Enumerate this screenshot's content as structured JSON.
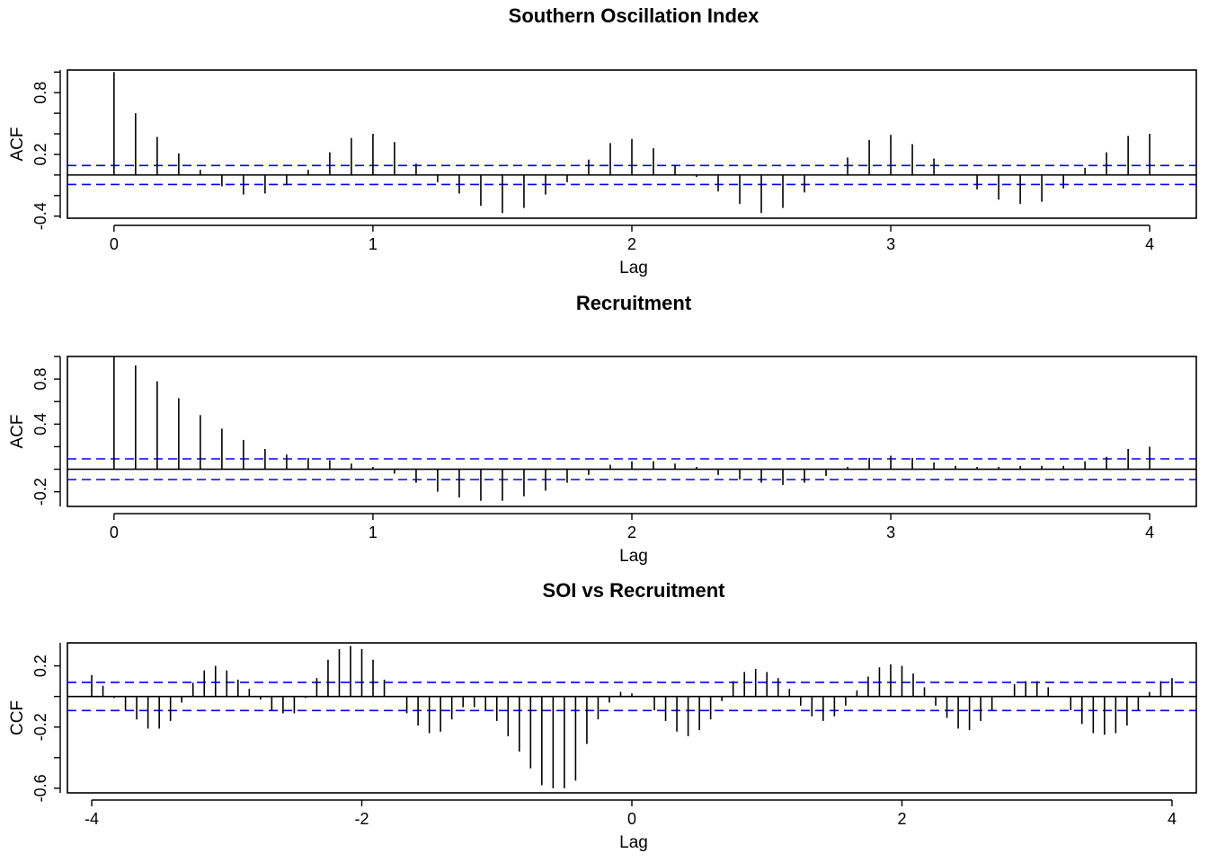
{
  "chart_data": [
    {
      "type": "bar",
      "title": "Southern Oscillation Index",
      "xlabel": "Lag",
      "ylabel": "ACF",
      "xlim": [
        -0.18,
        4.18
      ],
      "ylim": [
        -0.42,
        1.02
      ],
      "xticks": [
        0,
        1,
        2,
        3,
        4
      ],
      "yticks": [
        -0.4,
        0.2,
        0.8
      ],
      "ytick_labels": [
        "-0.4",
        "0.2",
        "0.8"
      ],
      "ci": 0.092,
      "x": [
        0,
        0.0833,
        0.1667,
        0.25,
        0.3333,
        0.4167,
        0.5,
        0.5833,
        0.6667,
        0.75,
        0.8333,
        0.9167,
        1,
        1.0833,
        1.1667,
        1.25,
        1.3333,
        1.4167,
        1.5,
        1.5833,
        1.6667,
        1.75,
        1.8333,
        1.9167,
        2,
        2.0833,
        2.1667,
        2.25,
        2.3333,
        2.4167,
        2.5,
        2.5833,
        2.6667,
        2.75,
        2.8333,
        2.9167,
        3,
        3.0833,
        3.1667,
        3.25,
        3.3333,
        3.4167,
        3.5,
        3.5833,
        3.6667,
        3.75,
        3.8333,
        3.9167,
        4
      ],
      "values": [
        1.0,
        0.6,
        0.37,
        0.21,
        0.05,
        -0.11,
        -0.19,
        -0.18,
        -0.1,
        0.05,
        0.22,
        0.36,
        0.4,
        0.32,
        0.11,
        -0.07,
        -0.18,
        -0.3,
        -0.37,
        -0.32,
        -0.19,
        -0.07,
        0.15,
        0.31,
        0.35,
        0.26,
        0.1,
        -0.02,
        -0.16,
        -0.28,
        -0.37,
        -0.32,
        -0.17,
        0.0,
        0.17,
        0.34,
        0.39,
        0.3,
        0.16,
        0.0,
        -0.14,
        -0.24,
        -0.28,
        -0.26,
        -0.13,
        0.07,
        0.22,
        0.38,
        0.4
      ]
    },
    {
      "type": "bar",
      "title": "Recruitment",
      "xlabel": "Lag",
      "ylabel": "ACF",
      "xlim": [
        -0.18,
        4.18
      ],
      "ylim": [
        -0.33,
        1.0
      ],
      "xticks": [
        0,
        1,
        2,
        3,
        4
      ],
      "yticks": [
        -0.2,
        0.4,
        0.8
      ],
      "ytick_labels": [
        "-0.2",
        "0.4",
        "0.8"
      ],
      "ci": 0.092,
      "x": [
        0,
        0.0833,
        0.1667,
        0.25,
        0.3333,
        0.4167,
        0.5,
        0.5833,
        0.6667,
        0.75,
        0.8333,
        0.9167,
        1,
        1.0833,
        1.1667,
        1.25,
        1.3333,
        1.4167,
        1.5,
        1.5833,
        1.6667,
        1.75,
        1.8333,
        1.9167,
        2,
        2.0833,
        2.1667,
        2.25,
        2.3333,
        2.4167,
        2.5,
        2.5833,
        2.6667,
        2.75,
        2.8333,
        2.9167,
        3,
        3.0833,
        3.1667,
        3.25,
        3.3333,
        3.4167,
        3.5,
        3.5833,
        3.6667,
        3.75,
        3.8333,
        3.9167,
        4
      ],
      "values": [
        1.0,
        0.92,
        0.78,
        0.63,
        0.48,
        0.36,
        0.26,
        0.18,
        0.13,
        0.1,
        0.08,
        0.05,
        0.02,
        -0.04,
        -0.12,
        -0.2,
        -0.25,
        -0.28,
        -0.28,
        -0.24,
        -0.19,
        -0.12,
        -0.05,
        0.04,
        0.07,
        0.07,
        0.05,
        0.02,
        -0.05,
        -0.09,
        -0.12,
        -0.14,
        -0.12,
        -0.06,
        0.02,
        0.1,
        0.12,
        0.1,
        0.06,
        0.03,
        0.02,
        0.02,
        0.03,
        0.03,
        0.03,
        0.07,
        0.11,
        0.18,
        0.2
      ]
    },
    {
      "type": "bar",
      "title": "SOI vs Recruitment",
      "xlabel": "Lag",
      "ylabel": "CCF",
      "xlim": [
        -4.18,
        4.18
      ],
      "ylim": [
        -0.63,
        0.35
      ],
      "xticks": [
        -4,
        -2,
        0,
        2,
        4
      ],
      "yticks": [
        -0.6,
        -0.2,
        0.2
      ],
      "ytick_labels": [
        "-0.6",
        "-0.2",
        "0.2"
      ],
      "ci": 0.092,
      "x": [
        -4,
        -3.9167,
        -3.8333,
        -3.75,
        -3.6667,
        -3.5833,
        -3.5,
        -3.4167,
        -3.3333,
        -3.25,
        -3.1667,
        -3.0833,
        -3,
        -2.9167,
        -2.8333,
        -2.75,
        -2.6667,
        -2.5833,
        -2.5,
        -2.4167,
        -2.3333,
        -2.25,
        -2.1667,
        -2.0833,
        -2,
        -1.9167,
        -1.8333,
        -1.75,
        -1.6667,
        -1.5833,
        -1.5,
        -1.4167,
        -1.3333,
        -1.25,
        -1.1667,
        -1.0833,
        -1,
        -0.9167,
        -0.8333,
        -0.75,
        -0.6667,
        -0.5833,
        -0.5,
        -0.4167,
        -0.3333,
        -0.25,
        -0.1667,
        -0.0833,
        0,
        0.0833,
        0.1667,
        0.25,
        0.3333,
        0.4167,
        0.5,
        0.5833,
        0.6667,
        0.75,
        0.8333,
        0.9167,
        1,
        1.0833,
        1.1667,
        1.25,
        1.3333,
        1.4167,
        1.5,
        1.5833,
        1.6667,
        1.75,
        1.8333,
        1.9167,
        2,
        2.0833,
        2.1667,
        2.25,
        2.3333,
        2.4167,
        2.5,
        2.5833,
        2.6667,
        2.75,
        2.8333,
        2.9167,
        3,
        3.0833,
        3.1667,
        3.25,
        3.3333,
        3.4167,
        3.5,
        3.5833,
        3.6667,
        3.75,
        3.8333,
        3.9167,
        4
      ],
      "values": [
        0.14,
        0.07,
        -0.01,
        -0.09,
        -0.15,
        -0.21,
        -0.21,
        -0.16,
        -0.04,
        0.09,
        0.17,
        0.2,
        0.17,
        0.11,
        0.05,
        -0.02,
        -0.09,
        -0.11,
        -0.11,
        -0.01,
        0.12,
        0.24,
        0.31,
        0.33,
        0.31,
        0.24,
        0.11,
        0.0,
        -0.11,
        -0.19,
        -0.24,
        -0.23,
        -0.15,
        -0.07,
        -0.07,
        -0.09,
        -0.16,
        -0.26,
        -0.36,
        -0.47,
        -0.58,
        -0.6,
        -0.6,
        -0.55,
        -0.31,
        -0.15,
        -0.04,
        0.03,
        0.02,
        0.0,
        -0.09,
        -0.16,
        -0.23,
        -0.26,
        -0.22,
        -0.15,
        -0.03,
        0.1,
        0.16,
        0.18,
        0.16,
        0.12,
        0.05,
        -0.06,
        -0.13,
        -0.16,
        -0.13,
        -0.06,
        0.04,
        0.13,
        0.19,
        0.21,
        0.2,
        0.15,
        0.06,
        -0.06,
        -0.14,
        -0.21,
        -0.22,
        -0.16,
        -0.09,
        0.0,
        0.08,
        0.1,
        0.1,
        0.06,
        0.0,
        -0.09,
        -0.18,
        -0.24,
        -0.25,
        -0.24,
        -0.19,
        -0.09,
        0.03,
        0.1,
        0.12
      ]
    }
  ]
}
